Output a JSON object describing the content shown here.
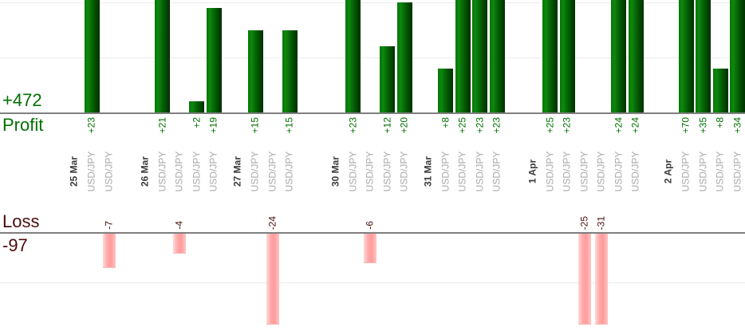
{
  "chart_data": {
    "type": "bar",
    "orientation": "vertical-columns",
    "description_visible_text_only": true,
    "profit": {
      "label": "Profit",
      "total": "+472",
      "text_color": "#007100",
      "bar_color_dark_green": "#056305",
      "gridline_values": [
        10,
        20
      ],
      "value_prefix": "+"
    },
    "loss": {
      "label": "Loss",
      "total": "-97",
      "text_color": "#4a0d0d",
      "bar_color_pink": "#ffa3a3",
      "gridline_values": [
        -10
      ]
    },
    "groups": [
      {
        "date": "25 Mar",
        "trades": [
          {
            "instrument": "USD/JPY",
            "value": 23
          },
          {
            "instrument": "USD/JPY",
            "value": -7
          }
        ]
      },
      {
        "date": "26 Mar",
        "trades": [
          {
            "instrument": "USD/JPY",
            "value": 21
          },
          {
            "instrument": "USD/JPY",
            "value": -4
          },
          {
            "instrument": "USD/JPY",
            "value": 2
          },
          {
            "instrument": "USD/JPY",
            "value": 19
          }
        ]
      },
      {
        "date": "27 Mar",
        "trades": [
          {
            "instrument": "USD/JPY",
            "value": 15
          },
          {
            "instrument": "USD/JPY",
            "value": -24
          },
          {
            "instrument": "USD/JPY",
            "value": 15
          }
        ]
      },
      {
        "date": "30 Mar",
        "trades": [
          {
            "instrument": "USD/JPY",
            "value": 23
          },
          {
            "instrument": "USD/JPY",
            "value": -6
          },
          {
            "instrument": "USD/JPY",
            "value": 12
          },
          {
            "instrument": "USD/JPY",
            "value": 20
          }
        ]
      },
      {
        "date": "31 Mar",
        "trades": [
          {
            "instrument": "USD/JPY",
            "value": 8
          },
          {
            "instrument": "USD/JPY",
            "value": 25
          },
          {
            "instrument": "USD/JPY",
            "value": 23
          },
          {
            "instrument": "USD/JPY",
            "value": 23
          }
        ]
      },
      {
        "date": "1 Apr",
        "trades": [
          {
            "instrument": "USD/JPY",
            "value": 25
          },
          {
            "instrument": "USD/JPY",
            "value": 23
          },
          {
            "instrument": "USD/JPY",
            "value": -25
          },
          {
            "instrument": "USD/JPY",
            "value": -31
          },
          {
            "instrument": "USD/JPY",
            "value": 24
          },
          {
            "instrument": "USD/JPY",
            "value": 24
          }
        ]
      },
      {
        "date": "2 Apr",
        "trades": [
          {
            "instrument": "USD/JPY",
            "value": 70
          },
          {
            "instrument": "USD/JPY",
            "value": 35
          },
          {
            "instrument": "USD/JPY",
            "value": 8
          },
          {
            "instrument": "USD/JPY",
            "value": 34
          }
        ]
      }
    ]
  }
}
